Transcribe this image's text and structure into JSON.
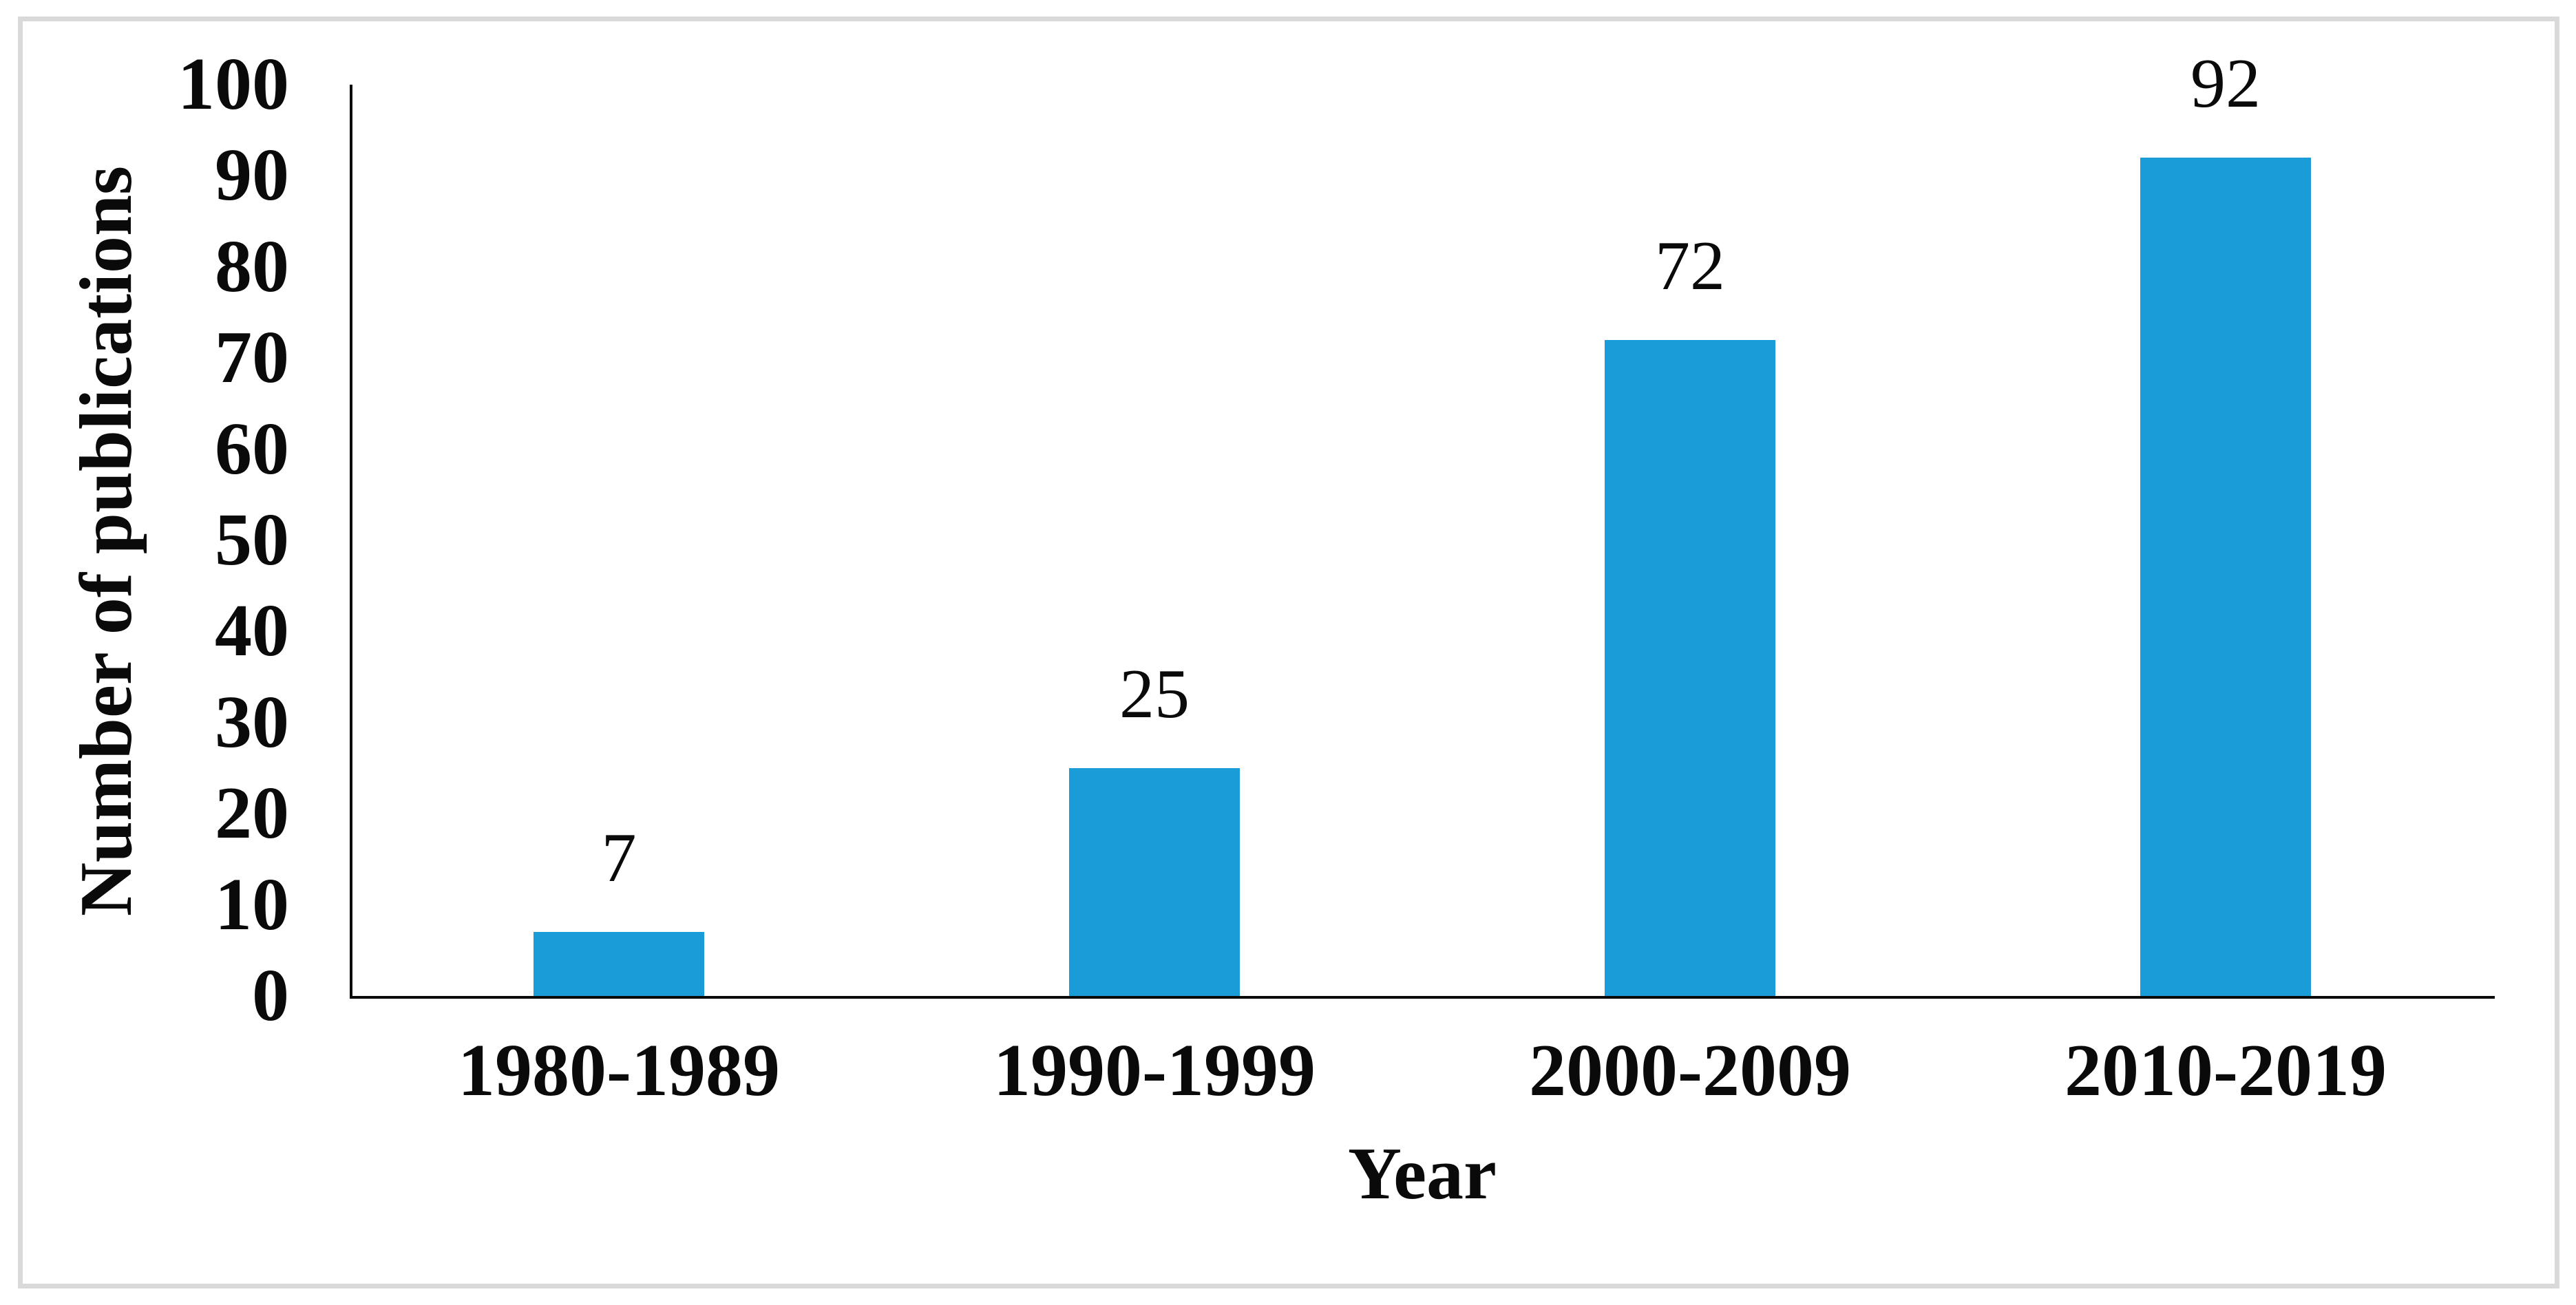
{
  "chart_data": {
    "type": "bar",
    "title": "",
    "categories": [
      "1980-1989",
      "1990-1999",
      "2000-2009",
      "2010-2019"
    ],
    "values": [
      7,
      25,
      72,
      92
    ],
    "data_labels": [
      "7",
      "25",
      "72",
      "92"
    ],
    "xlabel": "Year",
    "ylabel": "Number of publications",
    "yticks": [
      0,
      10,
      20,
      30,
      40,
      50,
      60,
      70,
      80,
      90,
      100
    ],
    "ylim": [
      0,
      100
    ],
    "grid": false,
    "legend_position": "none",
    "bar_color": "#199CD8",
    "axis_color": "#0A0A0A",
    "frame_border_color": "#D9D9D9"
  }
}
